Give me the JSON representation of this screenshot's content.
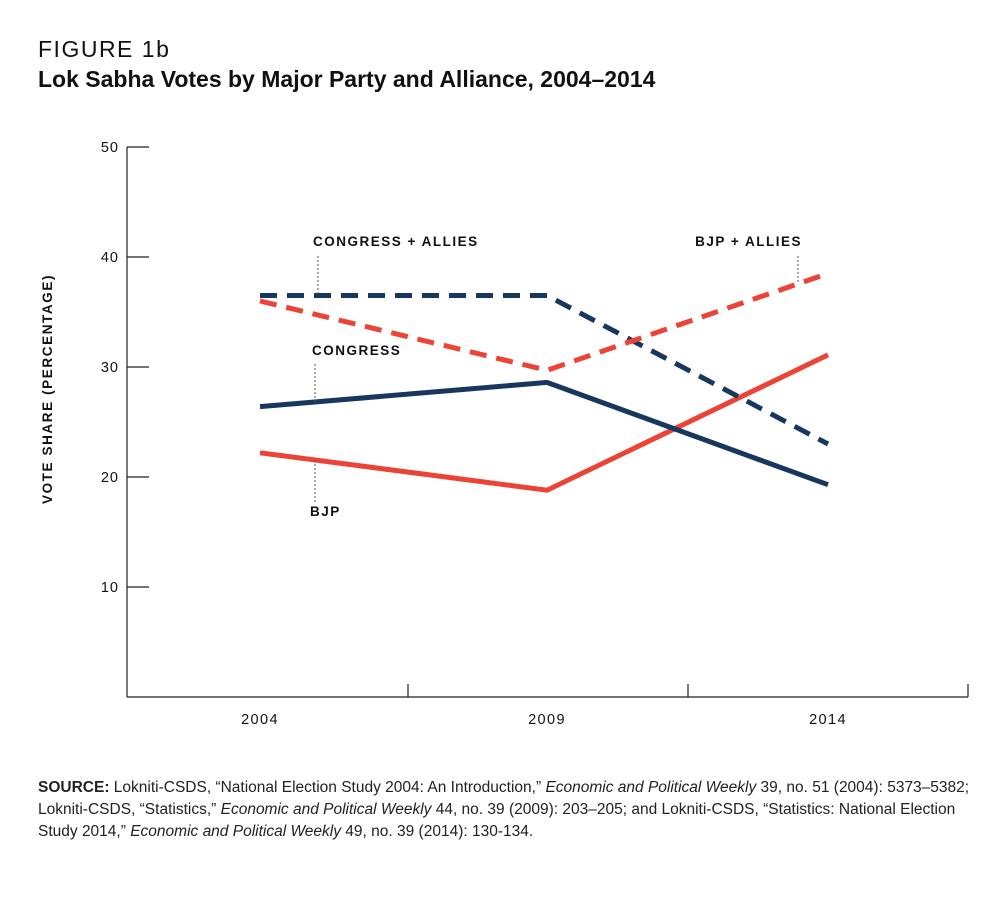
{
  "figure": {
    "label": "FIGURE 1b",
    "title": "Lok Sabha Votes by Major Party and Alliance, 2004–2014"
  },
  "chart_data": {
    "type": "line",
    "ylabel": "VOTE SHARE (PERCENTAGE)",
    "xlabel": "",
    "ylim": [
      0,
      50
    ],
    "yticks": [
      10,
      20,
      30,
      40,
      50
    ],
    "x": [
      "2004",
      "2009",
      "2014"
    ],
    "grid": false,
    "legend": "direct labels on lines",
    "colors": {
      "navy": "#17375e",
      "red": "#ec4336"
    },
    "series": [
      {
        "name": "CONGRESS + ALLIES",
        "values": [
          36.5,
          36.5,
          23.0
        ],
        "color": "#17375e",
        "style": "dashed"
      },
      {
        "name": "BJP + ALLIES",
        "values": [
          36.0,
          29.7,
          38.5
        ],
        "color": "#ec4336",
        "style": "dashed"
      },
      {
        "name": "CONGRESS",
        "values": [
          26.4,
          28.6,
          19.3
        ],
        "color": "#17375e",
        "style": "solid"
      },
      {
        "name": "BJP",
        "values": [
          22.2,
          18.8,
          31.1
        ],
        "color": "#ec4336",
        "style": "solid"
      }
    ]
  },
  "source": {
    "label": "SOURCE:",
    "parts": [
      {
        "text": " Lokniti-CSDS, “National Election Study 2004: An Introduction,” ",
        "italic": false
      },
      {
        "text": "Economic and Political Weekly",
        "italic": true
      },
      {
        "text": " 39, no. 51 (2004): 5373–5382; Lokniti-CSDS, “Statistics,” ",
        "italic": false
      },
      {
        "text": "Economic and Political Weekly",
        "italic": true
      },
      {
        "text": " 44, no. 39 (2009): 203–205; and Lokniti-CSDS, “Statistics: National Election Study 2014,” ",
        "italic": false
      },
      {
        "text": "Economic and Political Weekly",
        "italic": true
      },
      {
        "text": " 49, no. 39 (2014): 130-134.",
        "italic": false
      }
    ]
  }
}
